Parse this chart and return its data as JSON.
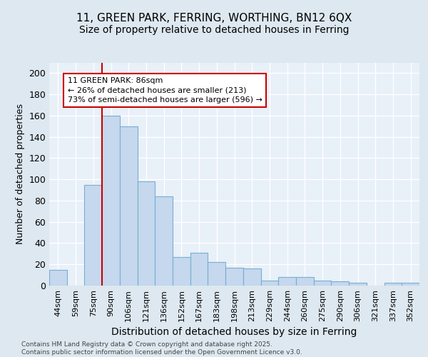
{
  "title1": "11, GREEN PARK, FERRING, WORTHING, BN12 6QX",
  "title2": "Size of property relative to detached houses in Ferring",
  "xlabel": "Distribution of detached houses by size in Ferring",
  "ylabel": "Number of detached properties",
  "categories": [
    "44sqm",
    "59sqm",
    "75sqm",
    "90sqm",
    "106sqm",
    "121sqm",
    "136sqm",
    "152sqm",
    "167sqm",
    "183sqm",
    "198sqm",
    "213sqm",
    "229sqm",
    "244sqm",
    "260sqm",
    "275sqm",
    "290sqm",
    "306sqm",
    "321sqm",
    "337sqm",
    "352sqm"
  ],
  "values": [
    15,
    0,
    95,
    160,
    150,
    98,
    84,
    27,
    31,
    22,
    17,
    16,
    5,
    8,
    8,
    5,
    4,
    3,
    0,
    3,
    3
  ],
  "bar_color": "#c5d8ed",
  "bar_edge_color": "#7aadd4",
  "vline_x_index": 3,
  "vline_color": "#cc0000",
  "annotation_text": "11 GREEN PARK: 86sqm\n← 26% of detached houses are smaller (213)\n73% of semi-detached houses are larger (596) →",
  "annotation_box_color": "white",
  "annotation_box_edge_color": "#cc0000",
  "ylim": [
    0,
    210
  ],
  "yticks": [
    0,
    20,
    40,
    60,
    80,
    100,
    120,
    140,
    160,
    180,
    200
  ],
  "background_color": "#dde8f0",
  "plot_bg_color": "#e8f0f8",
  "grid_color": "white",
  "title_fontsize": 11,
  "subtitle_fontsize": 10,
  "xlabel_fontsize": 10,
  "ylabel_fontsize": 9,
  "tick_fontsize": 8,
  "annotation_fontsize": 8,
  "footnote": "Contains HM Land Registry data © Crown copyright and database right 2025.\nContains public sector information licensed under the Open Government Licence v3.0."
}
